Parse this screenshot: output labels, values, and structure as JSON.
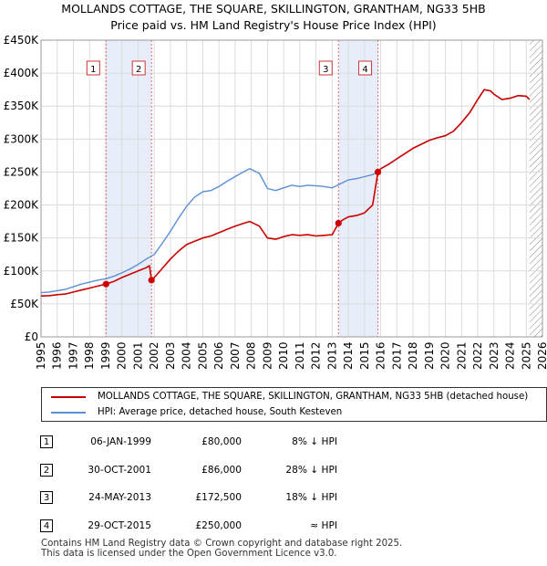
{
  "chart_data": {
    "type": "line",
    "title": "MOLLANDS COTTAGE, THE SQUARE, SKILLINGTON, GRANTHAM, NG33 5HB",
    "subtitle": "Price paid vs. HM Land Registry's House Price Index (HPI)",
    "xlabel": "",
    "ylabel": "",
    "xlim": [
      1995,
      2026
    ],
    "ylim": [
      0,
      450000
    ],
    "y_ticks": [
      {
        "value": 0,
        "label": "£0"
      },
      {
        "value": 50000,
        "label": "£50K"
      },
      {
        "value": 100000,
        "label": "£100K"
      },
      {
        "value": 150000,
        "label": "£150K"
      },
      {
        "value": 200000,
        "label": "£200K"
      },
      {
        "value": 250000,
        "label": "£250K"
      },
      {
        "value": 300000,
        "label": "£300K"
      },
      {
        "value": 350000,
        "label": "£350K"
      },
      {
        "value": 400000,
        "label": "£400K"
      },
      {
        "value": 450000,
        "label": "£450K"
      }
    ],
    "x_ticks": [
      1995,
      1996,
      1997,
      1998,
      1999,
      2000,
      2001,
      2002,
      2003,
      2004,
      2005,
      2006,
      2007,
      2008,
      2009,
      2010,
      2011,
      2012,
      2013,
      2014,
      2015,
      2016,
      2017,
      2018,
      2019,
      2020,
      2021,
      2022,
      2023,
      2024,
      2025,
      2026
    ],
    "shaded_regions": [
      [
        1999.02,
        2001.83
      ],
      [
        2013.39,
        2015.83
      ]
    ],
    "data_end": 2025.2,
    "series": [
      {
        "name": "MOLLANDS COTTAGE, THE SQUARE, SKILLINGTON, GRANTHAM, NG33 5HB (detached house)",
        "color": "#cc0000",
        "x": [
          1995.0,
          1995.5,
          1996.0,
          1996.5,
          1997.0,
          1997.5,
          1998.0,
          1998.5,
          1999.02,
          1999.5,
          2000.0,
          2000.5,
          2001.0,
          2001.5,
          2001.7,
          2001.83,
          2002.0,
          2002.5,
          2003.0,
          2003.5,
          2004.0,
          2004.5,
          2005.0,
          2005.5,
          2006.0,
          2006.5,
          2007.0,
          2007.5,
          2007.9,
          2008.5,
          2009.0,
          2009.5,
          2010.0,
          2010.5,
          2011.0,
          2011.5,
          2012.0,
          2012.5,
          2013.0,
          2013.39,
          2013.7,
          2014.0,
          2014.5,
          2015.0,
          2015.5,
          2015.83,
          2016.0,
          2016.5,
          2017.0,
          2017.5,
          2018.0,
          2018.5,
          2019.0,
          2019.5,
          2020.0,
          2020.5,
          2021.0,
          2021.5,
          2022.0,
          2022.4,
          2022.8,
          2023.0,
          2023.5,
          2024.0,
          2024.5,
          2025.0,
          2025.2
        ],
        "values": [
          62000,
          62500,
          64000,
          65000,
          68000,
          71000,
          74000,
          77000,
          80000,
          84000,
          90000,
          95000,
          100000,
          105000,
          108000,
          86000,
          90000,
          104000,
          118000,
          130000,
          140000,
          145000,
          150000,
          153000,
          158000,
          163000,
          168000,
          172000,
          175000,
          168000,
          150000,
          148000,
          152000,
          155000,
          154000,
          155000,
          153000,
          154000,
          155000,
          172500,
          178000,
          182000,
          184000,
          188000,
          200000,
          250000,
          255000,
          262000,
          270000,
          278000,
          286000,
          292000,
          298000,
          302000,
          305000,
          312000,
          325000,
          340000,
          360000,
          375000,
          373000,
          368000,
          360000,
          362000,
          366000,
          365000,
          360000
        ]
      },
      {
        "name": "HPI: Average price, detached house, South Kesteven",
        "color": "#5b8fd6",
        "x": [
          1995.0,
          1995.5,
          1996.0,
          1996.5,
          1997.0,
          1997.5,
          1998.0,
          1998.5,
          1999.0,
          1999.5,
          2000.0,
          2000.5,
          2001.0,
          2001.5,
          2002.0,
          2002.5,
          2003.0,
          2003.5,
          2004.0,
          2004.5,
          2005.0,
          2005.5,
          2006.0,
          2006.5,
          2007.0,
          2007.5,
          2007.9,
          2008.5,
          2009.0,
          2009.5,
          2010.0,
          2010.5,
          2011.0,
          2011.5,
          2012.0,
          2012.5,
          2013.0,
          2013.5,
          2014.0,
          2014.5,
          2015.0,
          2015.5,
          2015.83,
          2016.0,
          2016.5,
          2017.0,
          2017.5,
          2018.0,
          2018.5,
          2019.0,
          2019.5,
          2020.0,
          2020.5,
          2021.0,
          2021.5,
          2022.0,
          2022.4,
          2022.8,
          2023.0,
          2023.5,
          2024.0,
          2024.5,
          2025.0,
          2025.2
        ],
        "values": [
          67000,
          68000,
          70000,
          72000,
          76000,
          80000,
          83000,
          86000,
          88000,
          92000,
          97000,
          103000,
          110000,
          118000,
          125000,
          142000,
          160000,
          180000,
          198000,
          212000,
          220000,
          222000,
          228000,
          236000,
          243000,
          250000,
          255000,
          248000,
          225000,
          222000,
          226000,
          230000,
          228000,
          230000,
          229000,
          228000,
          226000,
          232000,
          238000,
          240000,
          243000,
          246000,
          250000,
          255000,
          262000,
          270000,
          278000,
          286000,
          292000,
          298000,
          302000,
          305000,
          312000,
          325000,
          340000,
          360000,
          375000,
          373000,
          368000,
          360000,
          362000,
          366000,
          365000,
          360000
        ]
      }
    ],
    "annotations": [
      {
        "label": "1",
        "x": 1999.02
      },
      {
        "label": "2",
        "x": 2001.83
      },
      {
        "label": "3",
        "x": 2013.39
      },
      {
        "label": "4",
        "x": 2015.83
      }
    ],
    "sale_points": [
      {
        "x": 1999.02,
        "y": 80000
      },
      {
        "x": 2001.83,
        "y": 86000
      },
      {
        "x": 2013.39,
        "y": 172500
      },
      {
        "x": 2015.83,
        "y": 250000
      }
    ]
  },
  "legend": {
    "property_label": "MOLLANDS COTTAGE, THE SQUARE, SKILLINGTON, GRANTHAM, NG33 5HB (detached house)",
    "hpi_label": "HPI: Average price, detached house, South Kesteven",
    "property_color": "#cc0000",
    "hpi_color": "#5b8fd6"
  },
  "sales": [
    {
      "num": "1",
      "date": "06-JAN-1999",
      "price": "£80,000",
      "hpi": "8% ↓ HPI"
    },
    {
      "num": "2",
      "date": "30-OCT-2001",
      "price": "£86,000",
      "hpi": "28% ↓ HPI"
    },
    {
      "num": "3",
      "date": "24-MAY-2013",
      "price": "£172,500",
      "hpi": "18% ↓ HPI"
    },
    {
      "num": "4",
      "date": "29-OCT-2015",
      "price": "£250,000",
      "hpi": "≈ HPI"
    }
  ],
  "footer": {
    "line1": "Contains HM Land Registry data © Crown copyright and database right 2025.",
    "line2": "This data is licensed under the Open Government Licence v3.0."
  }
}
